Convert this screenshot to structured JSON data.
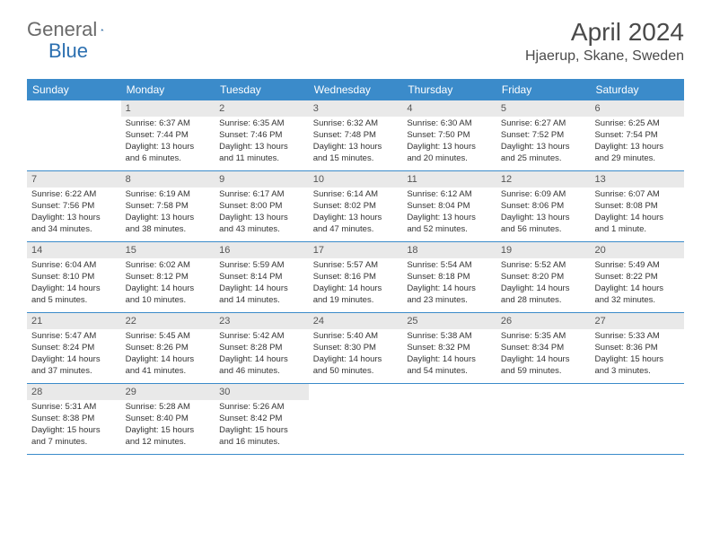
{
  "logo": {
    "text1": "General",
    "text2": "Blue"
  },
  "title": "April 2024",
  "location": "Hjaerup, Skane, Sweden",
  "colors": {
    "header_bg": "#3b8bca",
    "header_text": "#ffffff",
    "daynum_bg": "#e9e9e9",
    "row_border": "#3b8bca",
    "page_bg": "#ffffff",
    "body_text": "#333333",
    "title_text": "#4a4a4a",
    "logo_gray": "#6a6a6a",
    "logo_blue": "#2b6fb0"
  },
  "typography": {
    "title_fontsize": 28,
    "location_fontsize": 16,
    "dayhead_fontsize": 12,
    "daynum_fontsize": 11,
    "body_fontsize": 9.5,
    "logo_fontsize": 22,
    "font_family": "Arial"
  },
  "day_names": [
    "Sunday",
    "Monday",
    "Tuesday",
    "Wednesday",
    "Thursday",
    "Friday",
    "Saturday"
  ],
  "weeks": [
    [
      null,
      {
        "n": "1",
        "sr": "Sunrise: 6:37 AM",
        "ss": "Sunset: 7:44 PM",
        "dl1": "Daylight: 13 hours",
        "dl2": "and 6 minutes."
      },
      {
        "n": "2",
        "sr": "Sunrise: 6:35 AM",
        "ss": "Sunset: 7:46 PM",
        "dl1": "Daylight: 13 hours",
        "dl2": "and 11 minutes."
      },
      {
        "n": "3",
        "sr": "Sunrise: 6:32 AM",
        "ss": "Sunset: 7:48 PM",
        "dl1": "Daylight: 13 hours",
        "dl2": "and 15 minutes."
      },
      {
        "n": "4",
        "sr": "Sunrise: 6:30 AM",
        "ss": "Sunset: 7:50 PM",
        "dl1": "Daylight: 13 hours",
        "dl2": "and 20 minutes."
      },
      {
        "n": "5",
        "sr": "Sunrise: 6:27 AM",
        "ss": "Sunset: 7:52 PM",
        "dl1": "Daylight: 13 hours",
        "dl2": "and 25 minutes."
      },
      {
        "n": "6",
        "sr": "Sunrise: 6:25 AM",
        "ss": "Sunset: 7:54 PM",
        "dl1": "Daylight: 13 hours",
        "dl2": "and 29 minutes."
      }
    ],
    [
      {
        "n": "7",
        "sr": "Sunrise: 6:22 AM",
        "ss": "Sunset: 7:56 PM",
        "dl1": "Daylight: 13 hours",
        "dl2": "and 34 minutes."
      },
      {
        "n": "8",
        "sr": "Sunrise: 6:19 AM",
        "ss": "Sunset: 7:58 PM",
        "dl1": "Daylight: 13 hours",
        "dl2": "and 38 minutes."
      },
      {
        "n": "9",
        "sr": "Sunrise: 6:17 AM",
        "ss": "Sunset: 8:00 PM",
        "dl1": "Daylight: 13 hours",
        "dl2": "and 43 minutes."
      },
      {
        "n": "10",
        "sr": "Sunrise: 6:14 AM",
        "ss": "Sunset: 8:02 PM",
        "dl1": "Daylight: 13 hours",
        "dl2": "and 47 minutes."
      },
      {
        "n": "11",
        "sr": "Sunrise: 6:12 AM",
        "ss": "Sunset: 8:04 PM",
        "dl1": "Daylight: 13 hours",
        "dl2": "and 52 minutes."
      },
      {
        "n": "12",
        "sr": "Sunrise: 6:09 AM",
        "ss": "Sunset: 8:06 PM",
        "dl1": "Daylight: 13 hours",
        "dl2": "and 56 minutes."
      },
      {
        "n": "13",
        "sr": "Sunrise: 6:07 AM",
        "ss": "Sunset: 8:08 PM",
        "dl1": "Daylight: 14 hours",
        "dl2": "and 1 minute."
      }
    ],
    [
      {
        "n": "14",
        "sr": "Sunrise: 6:04 AM",
        "ss": "Sunset: 8:10 PM",
        "dl1": "Daylight: 14 hours",
        "dl2": "and 5 minutes."
      },
      {
        "n": "15",
        "sr": "Sunrise: 6:02 AM",
        "ss": "Sunset: 8:12 PM",
        "dl1": "Daylight: 14 hours",
        "dl2": "and 10 minutes."
      },
      {
        "n": "16",
        "sr": "Sunrise: 5:59 AM",
        "ss": "Sunset: 8:14 PM",
        "dl1": "Daylight: 14 hours",
        "dl2": "and 14 minutes."
      },
      {
        "n": "17",
        "sr": "Sunrise: 5:57 AM",
        "ss": "Sunset: 8:16 PM",
        "dl1": "Daylight: 14 hours",
        "dl2": "and 19 minutes."
      },
      {
        "n": "18",
        "sr": "Sunrise: 5:54 AM",
        "ss": "Sunset: 8:18 PM",
        "dl1": "Daylight: 14 hours",
        "dl2": "and 23 minutes."
      },
      {
        "n": "19",
        "sr": "Sunrise: 5:52 AM",
        "ss": "Sunset: 8:20 PM",
        "dl1": "Daylight: 14 hours",
        "dl2": "and 28 minutes."
      },
      {
        "n": "20",
        "sr": "Sunrise: 5:49 AM",
        "ss": "Sunset: 8:22 PM",
        "dl1": "Daylight: 14 hours",
        "dl2": "and 32 minutes."
      }
    ],
    [
      {
        "n": "21",
        "sr": "Sunrise: 5:47 AM",
        "ss": "Sunset: 8:24 PM",
        "dl1": "Daylight: 14 hours",
        "dl2": "and 37 minutes."
      },
      {
        "n": "22",
        "sr": "Sunrise: 5:45 AM",
        "ss": "Sunset: 8:26 PM",
        "dl1": "Daylight: 14 hours",
        "dl2": "and 41 minutes."
      },
      {
        "n": "23",
        "sr": "Sunrise: 5:42 AM",
        "ss": "Sunset: 8:28 PM",
        "dl1": "Daylight: 14 hours",
        "dl2": "and 46 minutes."
      },
      {
        "n": "24",
        "sr": "Sunrise: 5:40 AM",
        "ss": "Sunset: 8:30 PM",
        "dl1": "Daylight: 14 hours",
        "dl2": "and 50 minutes."
      },
      {
        "n": "25",
        "sr": "Sunrise: 5:38 AM",
        "ss": "Sunset: 8:32 PM",
        "dl1": "Daylight: 14 hours",
        "dl2": "and 54 minutes."
      },
      {
        "n": "26",
        "sr": "Sunrise: 5:35 AM",
        "ss": "Sunset: 8:34 PM",
        "dl1": "Daylight: 14 hours",
        "dl2": "and 59 minutes."
      },
      {
        "n": "27",
        "sr": "Sunrise: 5:33 AM",
        "ss": "Sunset: 8:36 PM",
        "dl1": "Daylight: 15 hours",
        "dl2": "and 3 minutes."
      }
    ],
    [
      {
        "n": "28",
        "sr": "Sunrise: 5:31 AM",
        "ss": "Sunset: 8:38 PM",
        "dl1": "Daylight: 15 hours",
        "dl2": "and 7 minutes."
      },
      {
        "n": "29",
        "sr": "Sunrise: 5:28 AM",
        "ss": "Sunset: 8:40 PM",
        "dl1": "Daylight: 15 hours",
        "dl2": "and 12 minutes."
      },
      {
        "n": "30",
        "sr": "Sunrise: 5:26 AM",
        "ss": "Sunset: 8:42 PM",
        "dl1": "Daylight: 15 hours",
        "dl2": "and 16 minutes."
      },
      null,
      null,
      null,
      null
    ]
  ]
}
